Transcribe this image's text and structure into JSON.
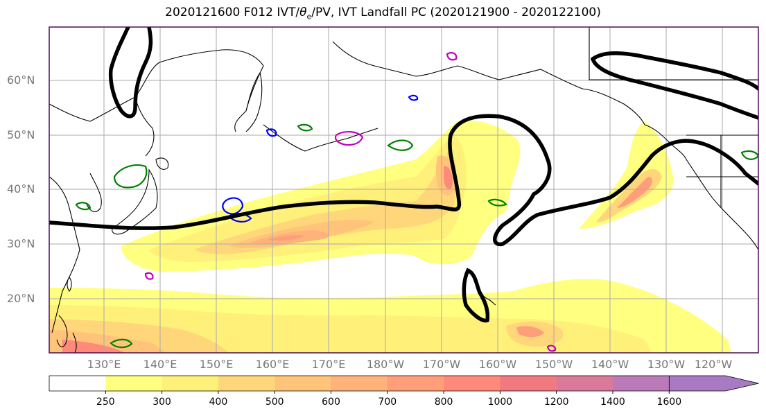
{
  "title_main": "2020121600 F012 IVT/",
  "title_theta": "θ",
  "title_sub": "e",
  "title_rest": "/PV, IVT Landfall PC (2020121900 - 2020122100)",
  "lat_labels": [
    "60°N",
    "50°N",
    "40°N",
    "30°N",
    "20°N"
  ],
  "lon_labels": [
    "130°E",
    "140°E",
    "150°E",
    "160°E",
    "170°E",
    "180°W",
    "170°W",
    "160°W",
    "150°W",
    "140°W",
    "130°W",
    "120°W"
  ],
  "colorbar": {
    "levels": [
      "250",
      "300",
      "400",
      "500",
      "600",
      "700",
      "800",
      "1000",
      "1200",
      "1400",
      "1600"
    ],
    "colors": [
      "#ffffff",
      "#ffff80",
      "#fff07a",
      "#ffd77a",
      "#ffc37a",
      "#ffb27a",
      "#ff9f7a",
      "#ff8a7a",
      "#f07a80",
      "#d87a98",
      "#bb7ab8",
      "#a87ac4"
    ]
  },
  "colors": {
    "theta_e_contour": "#000000",
    "pv_positive": "#008000",
    "pv_negative": "#0000ff",
    "pv_magenta": "#c000c0",
    "coastline": "#000000",
    "grid": "#aaaaaa",
    "frame": "#4b0f55"
  }
}
